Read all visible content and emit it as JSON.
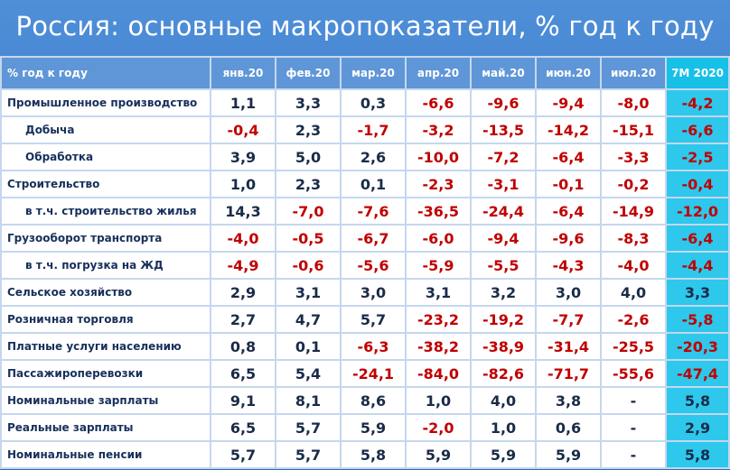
{
  "title": "Россия: основные макропоказатели, % год к году",
  "header_row": {
    "label": "% год к году",
    "months": [
      "янв.20",
      "фев.20",
      "мар.20",
      "апр.20",
      "май.20",
      "июн.20",
      "июл.20",
      "7М 2020"
    ]
  },
  "rows": [
    {
      "label": "Промышленное производство",
      "indent": false,
      "values": [
        "1,1",
        "3,3",
        "0,3",
        "-6,6",
        "-9,6",
        "-9,4",
        "-8,0",
        "-4,2"
      ]
    },
    {
      "label": "Добыча",
      "indent": true,
      "values": [
        "-0,4",
        "2,3",
        "-1,7",
        "-3,2",
        "-13,5",
        "-14,2",
        "-15,1",
        "-6,6"
      ]
    },
    {
      "label": "Обработка",
      "indent": true,
      "values": [
        "3,9",
        "5,0",
        "2,6",
        "-10,0",
        "-7,2",
        "-6,4",
        "-3,3",
        "-2,5"
      ]
    },
    {
      "label": "Строительство",
      "indent": false,
      "values": [
        "1,0",
        "2,3",
        "0,1",
        "-2,3",
        "-3,1",
        "-0,1",
        "-0,2",
        "-0,4"
      ]
    },
    {
      "label": "в т.ч. строительство жилья",
      "indent": true,
      "values": [
        "14,3",
        "-7,0",
        "-7,6",
        "-36,5",
        "-24,4",
        "-6,4",
        "-14,9",
        "-12,0"
      ]
    },
    {
      "label": "Грузооборот транспорта",
      "indent": false,
      "values": [
        "-4,0",
        "-0,5",
        "-6,7",
        "-6,0",
        "-9,4",
        "-9,6",
        "-8,3",
        "-6,4"
      ]
    },
    {
      "label": "в т.ч. погрузка на ЖД",
      "indent": true,
      "values": [
        "-4,9",
        "-0,6",
        "-5,6",
        "-5,9",
        "-5,5",
        "-4,3",
        "-4,0",
        "-4,4"
      ]
    },
    {
      "label": "Сельское хозяйство",
      "indent": false,
      "values": [
        "2,9",
        "3,1",
        "3,0",
        "3,1",
        "3,2",
        "3,0",
        "4,0",
        "3,3"
      ]
    },
    {
      "label": "Розничная торговля",
      "indent": false,
      "values": [
        "2,7",
        "4,7",
        "5,7",
        "-23,2",
        "-19,2",
        "-7,7",
        "-2,6",
        "-5,8"
      ]
    },
    {
      "label": "Платные услуги населению",
      "indent": false,
      "values": [
        "0,8",
        "0,1",
        "-6,3",
        "-38,2",
        "-38,9",
        "-31,4",
        "-25,5",
        "-20,3"
      ]
    },
    {
      "label": "Пассажироперевозки",
      "indent": false,
      "values": [
        "6,5",
        "5,4",
        "-24,1",
        "-84,0",
        "-82,6",
        "-71,7",
        "-55,6",
        "-47,4"
      ]
    },
    {
      "label": "Номинальные зарплаты",
      "indent": false,
      "values": [
        "9,1",
        "8,1",
        "8,6",
        "1,0",
        "4,0",
        "3,8",
        "-",
        "5,8"
      ]
    },
    {
      "label": "Реальные зарплаты",
      "indent": false,
      "values": [
        "6,5",
        "5,7",
        "5,9",
        "-2,0",
        "1,0",
        "0,6",
        "-",
        "2,9"
      ]
    },
    {
      "label": "Номинальные пенсии",
      "indent": false,
      "values": [
        "5,7",
        "5,7",
        "5,8",
        "5,9",
        "5,9",
        "5,9",
        "-",
        "5,8"
      ]
    }
  ],
  "colors": {
    "background": "#3878c8",
    "header_cell": "#5f96d7",
    "total_column": "#2dc8ec",
    "negative_text": "#c00000",
    "positive_text": "#1a2b48",
    "label_text": "#17305b"
  }
}
